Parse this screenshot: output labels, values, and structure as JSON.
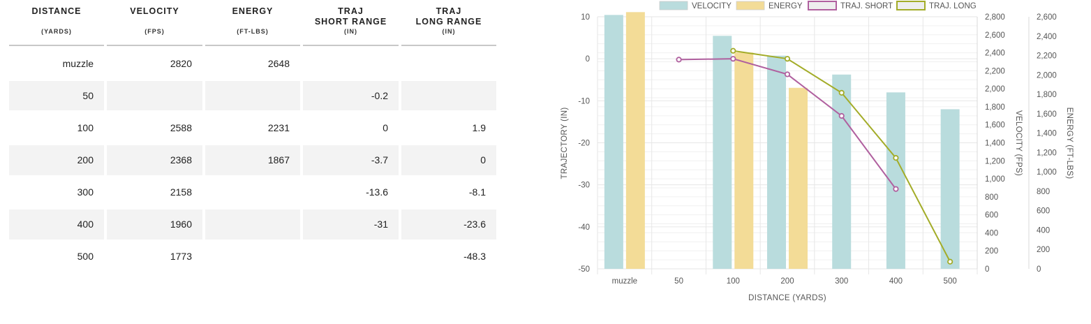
{
  "table": {
    "headers": [
      {
        "title": "DISTANCE",
        "unit": "(YARDS)"
      },
      {
        "title": "VELOCITY",
        "unit": "(FPS)"
      },
      {
        "title": "ENERGY",
        "unit": "(FT-LBS)"
      },
      {
        "title": "TRAJ\nSHORT RANGE",
        "unit": "(IN)"
      },
      {
        "title": "TRAJ\nLONG RANGE",
        "unit": "(IN)"
      }
    ],
    "rows": [
      [
        "muzzle",
        "2820",
        "2648",
        "",
        ""
      ],
      [
        "50",
        "",
        "",
        "-0.2",
        ""
      ],
      [
        "100",
        "2588",
        "2231",
        "0",
        "1.9"
      ],
      [
        "200",
        "2368",
        "1867",
        "-3.7",
        "0"
      ],
      [
        "300",
        "2158",
        "",
        "-13.6",
        "-8.1"
      ],
      [
        "400",
        "1960",
        "",
        "-31",
        "-23.6"
      ],
      [
        "500",
        "1773",
        "",
        "",
        "-48.3"
      ]
    ]
  },
  "chart_data": {
    "type": "bar",
    "categories": [
      "muzzle",
      "50",
      "100",
      "200",
      "300",
      "400",
      "500"
    ],
    "xlabel": "DISTANCE (YARDS)",
    "ylabel": "TRAJECTORY (IN)",
    "y2label": "VELOCITY (FPS)",
    "y3label": "ENERGY (FT-LBS)",
    "ylim": [
      -50,
      10
    ],
    "y2lim": [
      0,
      2800
    ],
    "y3lim": [
      0,
      2600
    ],
    "y_ticks": [
      10,
      0,
      -10,
      -20,
      -30,
      -40,
      -50
    ],
    "y2_ticks": [
      "0",
      "200",
      "400",
      "600",
      "800",
      "1,000",
      "1,200",
      "1,400",
      "1,600",
      "1,800",
      "2,000",
      "2,200",
      "2,400",
      "2,600",
      "2,800"
    ],
    "y3_ticks": [
      "0",
      "200",
      "400",
      "600",
      "800",
      "1,000",
      "1,200",
      "1,400",
      "1,600",
      "1,800",
      "2,000",
      "2,200",
      "2,400",
      "2,600"
    ],
    "grid": true,
    "legend_position": "top",
    "series": [
      {
        "name": "VELOCITY",
        "kind": "bar",
        "axis": "y2",
        "color": "#b9dcdd",
        "values": [
          2820,
          null,
          2588,
          2368,
          2158,
          1960,
          1773
        ]
      },
      {
        "name": "ENERGY",
        "kind": "bar",
        "axis": "y3",
        "color": "#f3dc97",
        "values": [
          2648,
          null,
          2231,
          1867,
          null,
          null,
          null
        ]
      },
      {
        "name": "TRAJ. SHORT",
        "kind": "line",
        "axis": "y",
        "color": "#b0609f",
        "values": [
          null,
          -0.2,
          0,
          -3.7,
          -13.6,
          -31,
          null
        ]
      },
      {
        "name": "TRAJ. LONG",
        "kind": "line",
        "axis": "y",
        "color": "#a3ac28",
        "values": [
          null,
          null,
          1.9,
          0,
          -8.1,
          -23.6,
          -48.3
        ]
      }
    ],
    "colors": {
      "velocity_axis": "#8ecfd0",
      "energy_axis": "#f0cf78",
      "grid": "#e6e6e6"
    }
  }
}
